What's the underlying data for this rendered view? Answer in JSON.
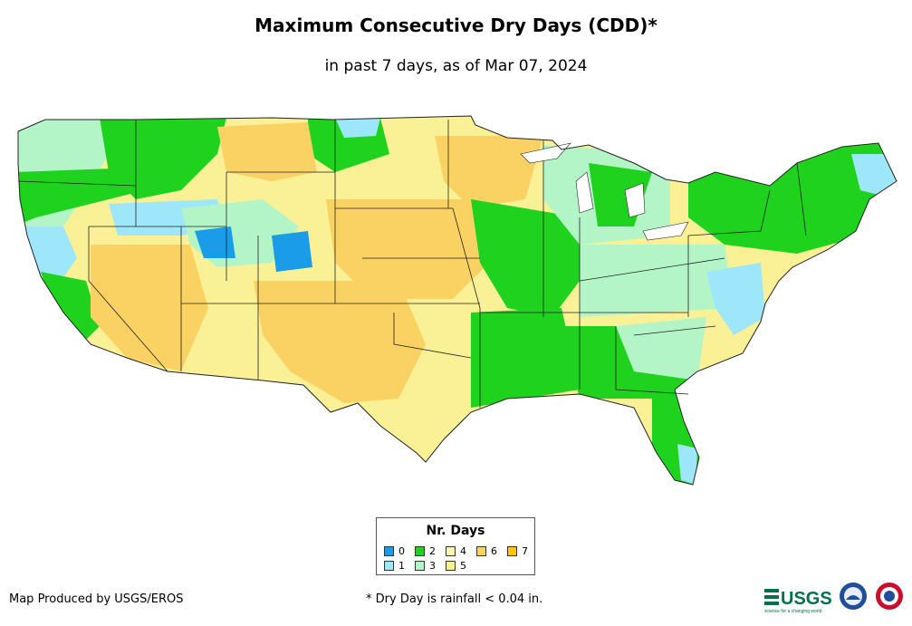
{
  "map": {
    "title": "Maximum Consecutive Dry Days (CDD)*",
    "subtitle": "in past 7 days, as of Mar 07, 2024",
    "region": "Contiguous United States"
  },
  "legend": {
    "title": "Nr. Days",
    "items": [
      {
        "label": "0",
        "color": "#1a9ce8"
      },
      {
        "label": "1",
        "color": "#9ee7fa"
      },
      {
        "label": "2",
        "color": "#1ed21e"
      },
      {
        "label": "3",
        "color": "#b4f5c8"
      },
      {
        "label": "4",
        "color": "#fafab4"
      },
      {
        "label": "5",
        "color": "#faf096"
      },
      {
        "label": "6",
        "color": "#fad264"
      },
      {
        "label": "7",
        "color": "#fac800"
      }
    ]
  },
  "footer": {
    "credit": "Map Produced by USGS/EROS",
    "footnote": "* Dry Day is rainfall < 0.04 in.",
    "logo_usgs": "USGS",
    "logo_usgs_tagline": "science for a changing world"
  }
}
